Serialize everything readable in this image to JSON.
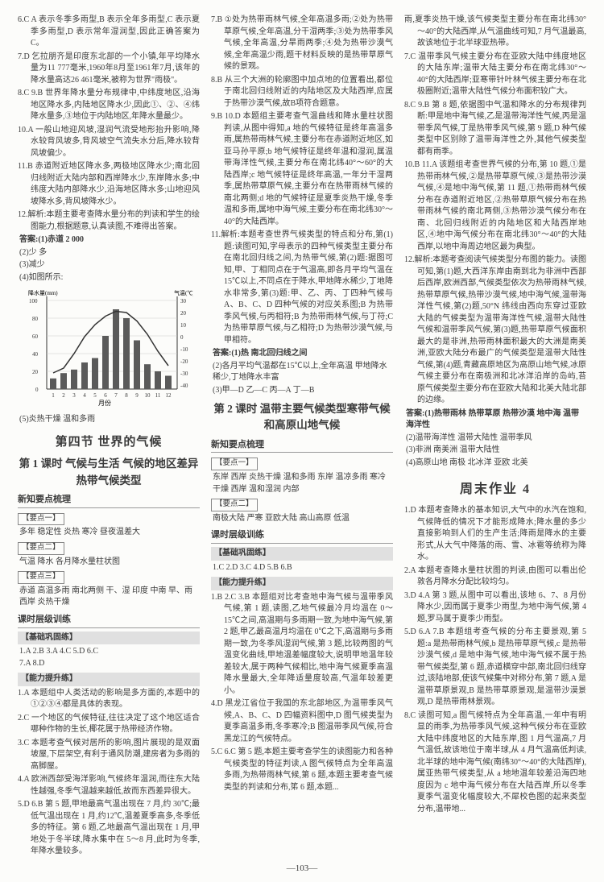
{
  "page_number": "—103—",
  "col1": {
    "items": [
      "6.C  A 表示冬季多雨型,B 表示全年多雨型,C 表示夏季多雨型,D 表示常年湿润型,因此正确答案为C。",
      "7.D  乞拉朋齐是印度东北部的一个小镇,年平均降水量为11 777毫米,1960年8月至1961年7月,该年的降水量高达26 461毫米,被称为世界\"雨极\"。",
      "8.C  9.B  世界年降水量分布规律中,中纬度地区,沿海地区降水多,内陆地区降水少,因此①、②、④纬降水量多,③地位于内陆地区,年降水量最少。",
      "10.A  一般山地迎风坡,湿润气流受地形抬升影响,降水较背风坡多,背风坡空气流失水分后,降水较背风坡偏少。",
      "11.B  赤道附近地区降水多,两极地区降水少;南北回归线附近大陆内部和西岸降水少,东岸降水多;中纬度大陆内部降水少,沿海地区降水多;山地迎风坡降水多,背风坡降水少。",
      "12.解析:本题主要考查降水量分布的判读和学生的绘图能力,根据题意,认真读图,不难得出答案。"
    ],
    "answers": [
      "答案:(1)赤道  2 000",
      "(2)少  多",
      "(3)减少",
      "(4)如图所示:"
    ],
    "chart": {
      "y_left_label": "降水量(mm)",
      "y_right_label": "气温(℃)",
      "y_left_max": 100,
      "y_left_ticks": [
        0,
        20,
        40,
        60,
        80,
        100
      ],
      "y_right_ticks": [
        -40,
        -30,
        -20,
        -10,
        0,
        10,
        20,
        30
      ],
      "months": [
        1,
        2,
        3,
        4,
        5,
        6,
        7,
        8,
        9,
        10,
        11,
        12
      ],
      "bars": [
        12,
        18,
        22,
        30,
        35,
        60,
        90,
        80,
        55,
        28,
        20,
        15
      ],
      "temp_line": [
        -28,
        -24,
        -12,
        2,
        12,
        19,
        23,
        22,
        15,
        4,
        -10,
        -22
      ],
      "bar_color": "#5a5a5a",
      "line_color": "#333333",
      "bg": "#fcfcfa",
      "grid": "#bbbbbb"
    },
    "chart_caption": "(5)炎热干燥  温和多雨",
    "section4": "第四节  世界的气候",
    "lesson1": "第 1 课时  气候与生活  气候的地区差异  热带气候类型",
    "xz_header": "新知要点梳理",
    "p1_label": "【要点一】",
    "p1_text": "多年  稳定性  炎热  寒冷  昼夜温差大",
    "p2_label": "【要点二】",
    "p2_text": "气温  降水  各月降水量柱状图",
    "p3_label": "【要点三】",
    "p3a": "赤道  高温多雨  南北两侧  干、湿  印度  中南  早、雨  西岸  炎热干燥",
    "ks_header": "课时层级训练",
    "jichu": "【基础巩固练】",
    "jichu_ans": "1.A  2.B  3.A  4.C  5.D  6.C\n7.A  8.D",
    "nengli": "【能力提升练】",
    "nl_items": [
      "1.A  本题组中人类活动的影响是多方面的,本题中的①②③④都是具体的表现。",
      "2.C  一个地区的气候特征,往往决定了这个地区适合哪种作物的生长,椰花属于热带经济作物。",
      "3.C  本题考查气候对居所的影响,图片展现的是双面坡屋,下层架空,有利于通风防潮,建房者为多雨的高脚屋。",
      "4.A  欧洲西部受海洋影响,气候终年温润,而往东大陆性越强,冬季气温越来越低,故而东西差异很大。",
      "5.D  6.B  第 5 题,甲地最高气温出现在 7 月,约 30℃;最低气温出现在 1 月,约12℃,温差夏季高多,冬季低多的特征。第 6 题,乙地最高气温出现在 1 月,甲地处于冬半球,降水集中在 5～8 月,此时为冬季,年降水量较多。"
    ]
  },
  "col2": {
    "items": [
      "7.B  ①处为热带雨林气候,全年高温多雨;②处为热带草原气候,全年高温,分干湿两季;③处为热带季风气候,全年高温,分旱雨两季;④处为热带沙漠气候,全年高温少雨,题干材料反映的是热带草原气候的景观。",
      "8.B  从三个大洲的轮廓图中加点地的位置看出,都位于南北回归线附近的内陆地区及大陆西岸,应属于热带沙漠气候,故B项符合题意。",
      "9.B  10.D  本题组主要考查气温曲线和降水量柱状图判读,从图中得知,a 地的气候特征是终年高温多雨,属热带雨林气候,主要分布在赤道附近地区,如亚马孙平原;b 地气候特征是终年温和湿润,属温带海洋性气候,主要分布在南北纬40°～60°的大陆西岸;c 地气候特征是终年高温,一年分干湿两季,属热带草原气候,主要分布在热带雨林气候的南北两侧;d 地的气候特征是夏季炎热干燥,冬季温和多雨,属地中海气候,主要分布在南北纬30°～40°的大陆西岸。",
      "11.解析:本题考查世界气候类型的特点和分布,第(1)题:读图可知,字母表示的四种气候类型主要分布在南北回归线之间,为热带气候,第(2)题:据图可知,甲、丁相同点在于气温高,即各月平均气温在 15℃以上,不同点在于降水,甲地降水稀少,丁地降水非常多,第(3)题:甲、乙、丙、丁四种气候与A、B、C、D 四种气候的对应关系图;B 为热带季风气候,与丙相符;B 为热带雨林气候,与丁符;C 为热带草原气候,与乙相符;D 为热带沙漠气候,与甲相符。",
      "答案:(1)热  南北回归线之间",
      "(2)各月平均气温都在15℃以上,全年高温  甲地降水稀少,丁地降水丰富",
      "(3)甲—D  乙—C  丙—A  丁—B"
    ],
    "lesson2": "第 2 课时  温带主要气候类型寒带气候和高原山地气候",
    "xz_header": "新知要点梳理",
    "p1_label": "【要点一】",
    "p1_text": "东岸  西岸  炎热干燥  温和多雨  东岸  温凉多雨  寒冷干燥  西岸  温和湿润  内部",
    "p2_label": "【要点二】",
    "p2_text": "南极大陆  严寒  亚欧大陆  高山高原  低温",
    "ks_header": "课时层级训练",
    "jichu": "【基础巩固练】",
    "jichu_ans": "1.C  2.D  3.C  4.D  5.B  6.B",
    "nengli": "【能力提升练】",
    "nl_items": [
      "1.B  2.C  3.B  本题组对比考查地中海气候与温带季风气候,第 1 题,读图,乙地气候最冷月均温在 0～15℃之间,高温期与多雨期一致,为地中海气候,第 2 题,甲乙最高温月均温在 0℃之下,高温期与多雨期一致,为冬季风湿润气候,第 3 题,比较两图的气温变化曲线,甲地温差幅度较大,说明甲地温年较差较大,属于两种气候相比,地中海气候夏季高温降水量最大,全年降适量度较高,气温年较差更小。",
      "4.D  黑龙江省位于我国的东北部地区,为温带季风气候,A、B、C、D 四幅资料图中,D 图气候类型为夏季高温多雨,冬季寒冷;B 图温带季风气候,符合黑龙江的气候特点。",
      "5.C  6.C  第 5 题,本题主要考查学生的读图能力和各种气候类型的特征判读,A 图气候特点为全年高温多雨,为热带雨林气候,第 6 题,本题主要考查气候类型的判读和分布,笫 6 题,本题..."
    ]
  },
  "col3": {
    "items": [
      "雨,夏季炎热干燥,该气候类型主要分布在南北纬30°～40°的大陆西岸,从气温曲线可知,7 月气温最高,故该地位于北半球亚热带。",
      "7.C  温带季风气候主要分布在亚欧大陆中纬度地区的大陆东岸;温带大陆主要分布在南北纬30°～40°的大陆西岸;亚寒带针叶林气候主要分布在北极圈附近;温带大陆性气候分布面积较广大。",
      "8.C  9.B  第 8 题,依据图中气温和降水的分布规律判断:甲是地中海气候,乙是温带海洋性气候,丙是温带季风气候,丁是热带季风气候,第 9 题,D 种气候类型中区别除了温带海洋性之外,其他气候类型都有雨季。",
      "10.B  11.A  该题组考查世界气候的分布,第 10 题,①是热带雨林气候,②是热带草原气候,③是热带沙漠气候,④是地中海气候,第 11 题,①热带雨林气候分布在赤道附近地区,②热带草原气候分布在热带雨林气候的南北两侧,③热带沙漠气候分布在南、北回归线附近的内陆地区和大陆西岸地区,④地中海气候分布在南北纬30°～40°的大陆西岸,以地中海周边地区最为典型。",
      "12.解析:本题考查阅读气候类型分布图的能力。读图可知,第(1)题,大西洋东岸由南到北为非洲中西部后西岸,欧洲西部,气候类型依次为热带雨林气候,热带草原气候,热带沙漠气候,地中海气候,温带海洋性气候,第(2)题,50°N 纬线由西向东穿过亚欧大陆的气候类型为温带海洋性气候,温带大陆性气候和温带季风气候,第(3)题,热带草原气候面积最大的是非洲,热带雨林面积最大的大洲是南美洲,亚欧大陆分布最广的气候类型是温带大陆性气候,第(4)题,青藏高原地区为高原山地气候,冰原气候主要分布在南极洲和北冰洋沿岸的岛屿,苔原气候类型主要分布在亚欧大陆和北美大陆北部的边缘。"
    ],
    "answers": [
      "答案:(1)热带雨林  热带草原  热带沙漠  地中海  温带海洋性",
      "(2)温带海洋性  温带大陆性  温带季风",
      "(3)非洲  南美洲  温带大陆性",
      "(4)高原山地  南极  北冰洋  亚欧  北美"
    ],
    "weekend": "周末作业 4",
    "wk_items": [
      "1.D  本题考查降水的基本知识,大气中的水汽在饱和,气候降低的情况下才能形成降水;降水量的多少直接影响到人们的生产生活;降雨是降水的主要形式,从大气中降落的雨、雪、冰雹等统称为降水。",
      "2.A  本题考查降水量柱状图的判读,由图可以看出伦敦各月降水分配比较均匀。",
      "3.D  4.A  第 3 题,从图中可以看出,该地 6、7、8 月份降水少,因而属于夏季少雨型,为地中海气候,第 4 题,罗马属于夏季少雨型。",
      "5.D  6.A  7.B  本题组考查气候的分布主要景观,第 5 题:a 是热带雨林气候,b 是热带草原气候,c 是热带沙漠气候,d 是地中海气候,地中海气候不属于热带气候类型,第 6 题,赤道横穿中部,南北回归线穿过,该陆地部,使该气候集中对称分布,第 7 题,A 是温带草原景观,B 是热带草原景观,是温带沙漠景观,D 是热带雨林景观。",
      "8.C  读图可知,a 图气候特点为全年高温,一年中有明显的雨季,为热带季风气候,这种气候分布在亚欧大陆中纬度地区的大陆东岸,图 1 月气温高,7 月气温低,故该地位于南半球,从 4 月气温高低判读,北半球的地中海气候(南纬30°～40°的大陆西岸),属亚热带气候类型,从 a 地地温年较差沿海四地度因为 c 地中海气候分布在大陆西岸,所以冬季夏季气温变化幅度较大,不犀校色图的起来类型分布,温带地..."
    ]
  }
}
